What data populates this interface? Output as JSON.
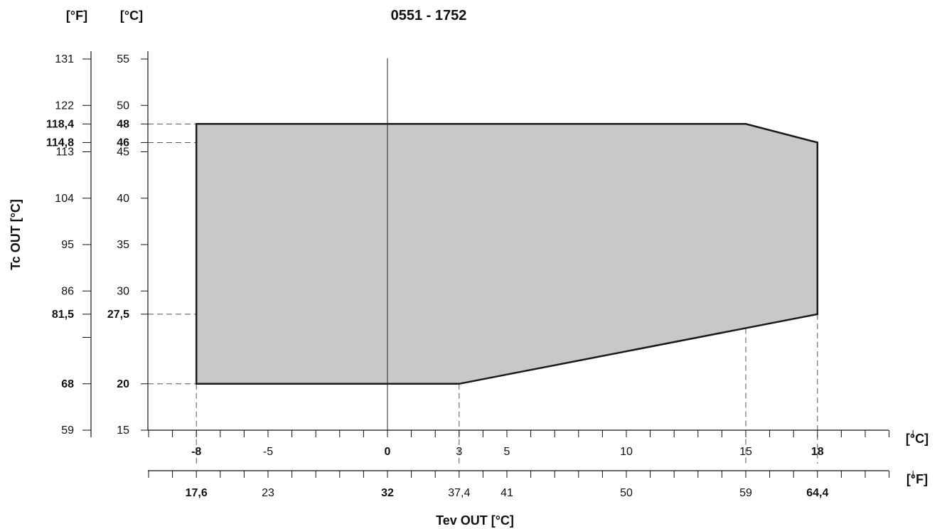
{
  "chart_data": {
    "type": "area",
    "title": "0551 - 1752",
    "xlabel": "Tev OUT [°C]",
    "ylabel": "Tc OUT [°C]",
    "x_unit_c": "[°C]",
    "x_unit_f": "[°F]",
    "y_unit_f": "[°F]",
    "y_unit_c": "[°C]",
    "xlim": [
      -10,
      22
    ],
    "ylim": [
      15,
      55
    ],
    "grid": false,
    "envelope": {
      "name": "",
      "points": [
        {
          "x": -8,
          "y": 20
        },
        {
          "x": 3,
          "y": 20
        },
        {
          "x": 18,
          "y": 27.5
        },
        {
          "x": 18,
          "y": 46
        },
        {
          "x": 15,
          "y": 48
        },
        {
          "x": -8,
          "y": 48
        }
      ]
    },
    "x_ticks_c": [
      {
        "value": -8,
        "label": "-8",
        "bold": true
      },
      {
        "value": -5,
        "label": "-5",
        "bold": false
      },
      {
        "value": 0,
        "label": "0",
        "bold": true
      },
      {
        "value": 3,
        "label": "3",
        "bold": false
      },
      {
        "value": 5,
        "label": "5",
        "bold": false
      },
      {
        "value": 10,
        "label": "10",
        "bold": false
      },
      {
        "value": 15,
        "label": "15",
        "bold": false
      },
      {
        "value": 18,
        "label": "18",
        "bold": true
      }
    ],
    "x_ticks_f": [
      {
        "value": -8,
        "label": "17,6",
        "bold": true
      },
      {
        "value": -5,
        "label": "23",
        "bold": false
      },
      {
        "value": 0,
        "label": "32",
        "bold": true
      },
      {
        "value": 3,
        "label": "37,4",
        "bold": false
      },
      {
        "value": 5,
        "label": "41",
        "bold": false
      },
      {
        "value": 10,
        "label": "50",
        "bold": false
      },
      {
        "value": 15,
        "label": "59",
        "bold": false
      },
      {
        "value": 18,
        "label": "64,4",
        "bold": true
      }
    ],
    "y_ticks_c": [
      {
        "value": 55,
        "label": "55",
        "bold": false
      },
      {
        "value": 50,
        "label": "50",
        "bold": false
      },
      {
        "value": 48,
        "label": "48",
        "bold": true
      },
      {
        "value": 46,
        "label": "46",
        "bold": true
      },
      {
        "value": 45,
        "label": "45",
        "bold": false
      },
      {
        "value": 40,
        "label": "40",
        "bold": false
      },
      {
        "value": 35,
        "label": "35",
        "bold": false
      },
      {
        "value": 30,
        "label": "30",
        "bold": false
      },
      {
        "value": 27.5,
        "label": "27,5",
        "bold": true
      },
      {
        "value": 20,
        "label": "20",
        "bold": true
      },
      {
        "value": 15,
        "label": "15",
        "bold": false
      }
    ],
    "y_ticks_f": [
      {
        "value": 55,
        "label": "131",
        "bold": false
      },
      {
        "value": 50,
        "label": "122",
        "bold": false
      },
      {
        "value": 48,
        "label": "118,4",
        "bold": true
      },
      {
        "value": 46,
        "label": "114,8",
        "bold": true
      },
      {
        "value": 45,
        "label": "113",
        "bold": false
      },
      {
        "value": 40,
        "label": "104",
        "bold": false
      },
      {
        "value": 35,
        "label": "95",
        "bold": false
      },
      {
        "value": 30,
        "label": "86",
        "bold": false
      },
      {
        "value": 27.5,
        "label": "81,5",
        "bold": true
      },
      {
        "value": 25,
        "label": "",
        "bold": false
      },
      {
        "value": 20,
        "label": "68",
        "bold": true
      },
      {
        "value": 15,
        "label": "59",
        "bold": false
      }
    ],
    "guide_lines": {
      "y": [
        48,
        46,
        27.5,
        20
      ],
      "x": [
        -8,
        3,
        15,
        18
      ]
    },
    "zero_line_x": 0,
    "colors": {
      "fill": "#c8c8c8",
      "outline": "#1a1a1a",
      "guide": "#555555"
    }
  }
}
